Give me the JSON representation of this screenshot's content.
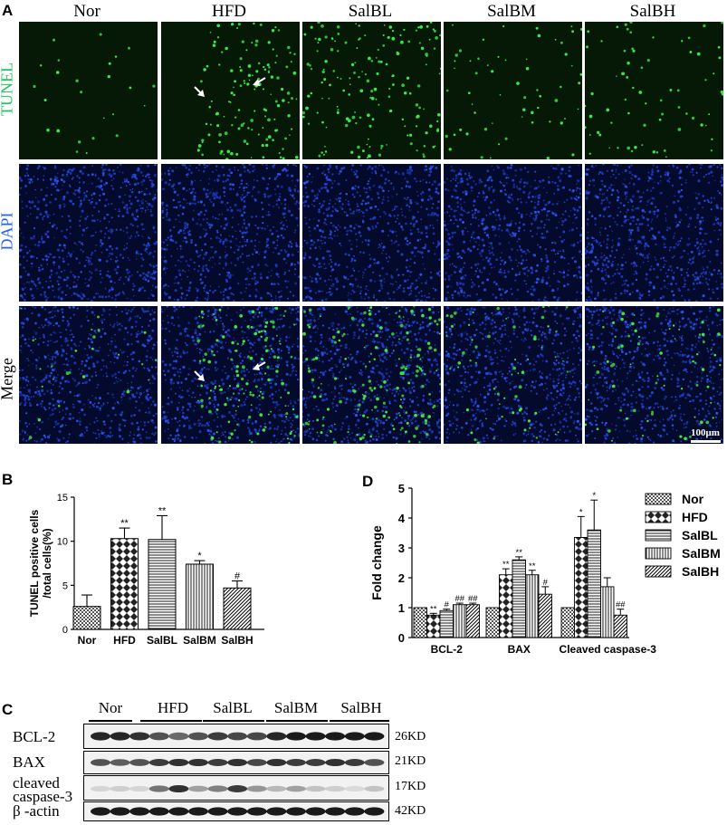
{
  "panelA": {
    "label": "A",
    "columns": [
      "Nor",
      "HFD",
      "SalBL",
      "SalBM",
      "SalBH"
    ],
    "rows": [
      {
        "name": "TUNEL",
        "color": "#22c55e"
      },
      {
        "name": "DAPI",
        "color": "#2563eb"
      },
      {
        "name": "Merge",
        "color": "#000000"
      }
    ],
    "scale_bar": "100μm"
  },
  "panelB": {
    "label": "B",
    "chart_data": {
      "type": "bar",
      "categories": [
        "Nor",
        "HFD",
        "SalBL",
        "SalBM",
        "SalBH"
      ],
      "values": [
        2.6,
        10.3,
        10.2,
        7.4,
        4.7
      ],
      "errors": [
        1.3,
        1.2,
        2.7,
        0.4,
        0.8
      ],
      "annotations": [
        "",
        "**",
        "**",
        "*",
        "#"
      ],
      "ylabel_line1": "TUNEL positive cells",
      "ylabel_line2": "/total cells(%)",
      "ylim": [
        0,
        15
      ],
      "yticks": [
        "0",
        "5",
        "10",
        "15"
      ],
      "patterns": [
        "checker",
        "diamond",
        "hlines",
        "vlines",
        "diag"
      ]
    }
  },
  "panelD": {
    "label": "D",
    "chart_data": {
      "type": "bar",
      "categories": [
        "BCL-2",
        "BAX",
        "Cleaved caspase-3"
      ],
      "ylabel": "Fold change",
      "ylim": [
        0,
        5
      ],
      "yticks": [
        "0",
        "1",
        "2",
        "3",
        "4",
        "5"
      ],
      "series": [
        {
          "name": "Nor",
          "values": [
            1.0,
            1.0,
            1.0
          ],
          "errors": [
            0,
            0,
            0
          ],
          "annotations": [
            "",
            "",
            ""
          ],
          "pattern": "checker"
        },
        {
          "name": "HFD",
          "values": [
            0.75,
            2.1,
            3.35
          ],
          "errors": [
            0.06,
            0.2,
            0.7
          ],
          "annotations": [
            "**",
            "**",
            "*"
          ],
          "pattern": "diamond"
        },
        {
          "name": "SalBL",
          "values": [
            0.9,
            2.6,
            3.6
          ],
          "errors": [
            0.05,
            0.1,
            1.0
          ],
          "annotations": [
            "#",
            "**",
            "*"
          ],
          "pattern": "hlines"
        },
        {
          "name": "SalBM",
          "values": [
            1.1,
            2.1,
            1.7
          ],
          "errors": [
            0.05,
            0.15,
            0.3
          ],
          "annotations": [
            "##",
            "**",
            ""
          ],
          "pattern": "vlines"
        },
        {
          "name": "SalBH",
          "values": [
            1.1,
            1.45,
            0.75
          ],
          "errors": [
            0.05,
            0.25,
            0.2
          ],
          "annotations": [
            "##",
            "#",
            "##"
          ],
          "pattern": "diag"
        }
      ]
    }
  },
  "panelC": {
    "label": "C",
    "groups": [
      "Nor",
      "HFD",
      "SalBL",
      "SalBM",
      "SalBH"
    ],
    "bands": [
      {
        "name": "BCL-2",
        "name_line2": "",
        "kd": "26KD"
      },
      {
        "name": "BAX",
        "name_line2": "",
        "kd": "21KD"
      },
      {
        "name": "cleaved",
        "name_line2": "caspase-3",
        "kd": "17KD"
      },
      {
        "name": "β -actin",
        "name_line2": "",
        "kd": "42KD"
      }
    ]
  }
}
